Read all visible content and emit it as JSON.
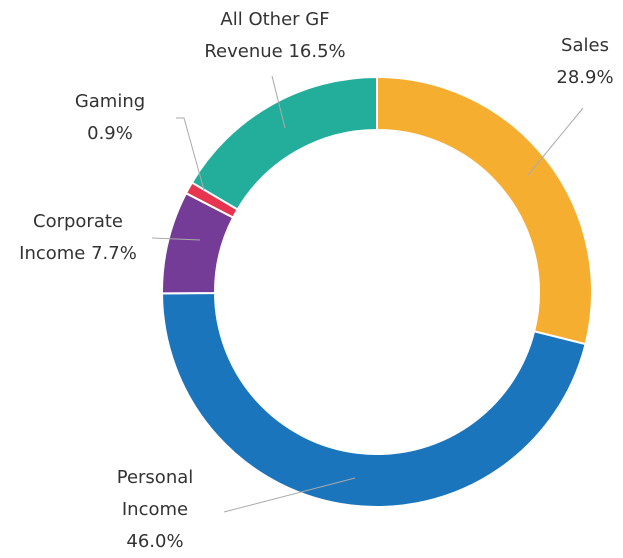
{
  "chart_data": {
    "type": "pie",
    "categories": [
      "Sales",
      "Personal Income",
      "Corporate Income",
      "Gaming",
      "All Other GF Revenue"
    ],
    "values": [
      28.9,
      46.0,
      7.7,
      0.9,
      16.5
    ],
    "value_labels": [
      "28.9%",
      "46.0%",
      "7.7%",
      "0.9%",
      "16.5%"
    ],
    "colors": [
      "#f5ae2f",
      "#1b75bc",
      "#743c96",
      "#e8344e",
      "#23ae9c"
    ]
  }
}
